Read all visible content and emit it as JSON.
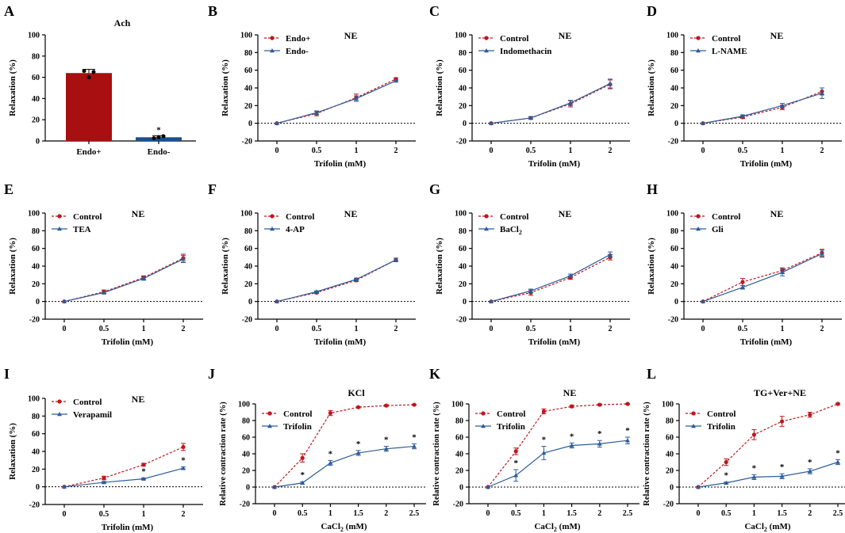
{
  "colors": {
    "red": "#C0161C",
    "blue": "#2E5C99",
    "bar_red": "#A80F10",
    "bar_blue": "#1D4F8F",
    "axis": "#000000"
  },
  "chart_data": [
    {
      "panel": "A",
      "type": "bar",
      "title": "Ach",
      "xlabel": "",
      "ylabel": "Relaxation (%)",
      "ylim": [
        0,
        100
      ],
      "yticks": [
        "0",
        "20",
        "40",
        "60",
        "80",
        "100"
      ],
      "categories": [
        "Endo+",
        "Endo-"
      ],
      "values": [
        64,
        3.5
      ],
      "errors": [
        3.5,
        1.5
      ],
      "points": [
        [
          66,
          60,
          65
        ],
        [
          2.5,
          3.5,
          4.5
        ]
      ],
      "stars": [
        "",
        "*"
      ]
    },
    {
      "panel": "B",
      "type": "line",
      "title": "NE",
      "xlabel": "Trifolin (mM)",
      "ylabel": "Relaxation (%)",
      "ylim": [
        -20,
        100
      ],
      "yticks": [
        "-20",
        "0",
        "20",
        "40",
        "60",
        "80",
        "100"
      ],
      "x": [
        0,
        0.5,
        1,
        2
      ],
      "xticks": [
        "0",
        "0.5",
        "1",
        "2"
      ],
      "series": [
        {
          "name": "Endo+",
          "color": "red",
          "values": [
            0,
            11,
            29,
            50
          ],
          "errors": [
            0,
            2.5,
            4,
            1.5
          ],
          "stars": []
        },
        {
          "name": "Endo-",
          "color": "blue",
          "values": [
            0,
            12,
            28,
            48
          ],
          "errors": [
            0,
            2,
            3,
            1
          ],
          "stars": []
        }
      ]
    },
    {
      "panel": "C",
      "type": "line",
      "title": "NE",
      "xlabel": "Trifolin (mM)",
      "ylabel": "Relaxation (%)",
      "ylim": [
        -20,
        100
      ],
      "yticks": [
        "-20",
        "0",
        "20",
        "40",
        "60",
        "80",
        "100"
      ],
      "x": [
        0,
        0.5,
        1,
        2
      ],
      "xticks": [
        "0",
        "0.5",
        "1",
        "2"
      ],
      "series": [
        {
          "name": "Control",
          "color": "red",
          "values": [
            0,
            6,
            22,
            44
          ],
          "errors": [
            0,
            1.5,
            3.5,
            5
          ],
          "stars": []
        },
        {
          "name": "Indomethacin",
          "color": "blue",
          "values": [
            0,
            6,
            23,
            45
          ],
          "errors": [
            0,
            1.5,
            3,
            5
          ],
          "stars": []
        }
      ]
    },
    {
      "panel": "D",
      "type": "line",
      "title": "NE",
      "xlabel": "Trifolin (mM)",
      "ylabel": "Relaxation (%)",
      "ylim": [
        -20,
        100
      ],
      "yticks": [
        "-20",
        "0",
        "20",
        "40",
        "60",
        "80",
        "100"
      ],
      "x": [
        0,
        0.5,
        1,
        2
      ],
      "xticks": [
        "0",
        "0.5",
        "1",
        "2"
      ],
      "series": [
        {
          "name": "Control",
          "color": "red",
          "values": [
            0,
            7,
            18,
            36
          ],
          "errors": [
            0,
            1.5,
            2.5,
            4
          ],
          "stars": []
        },
        {
          "name": "L-NAME",
          "color": "blue",
          "values": [
            0,
            8,
            20,
            34
          ],
          "errors": [
            0,
            1.5,
            2.5,
            6
          ],
          "stars": []
        }
      ]
    },
    {
      "panel": "E",
      "type": "line",
      "title": "NE",
      "xlabel": "Trifolin (mM)",
      "ylabel": "Relaxation (%)",
      "ylim": [
        -20,
        100
      ],
      "yticks": [
        "-20",
        "0",
        "20",
        "40",
        "60",
        "80",
        "100"
      ],
      "x": [
        0,
        0.5,
        1,
        2
      ],
      "xticks": [
        "0",
        "0.5",
        "1",
        "2"
      ],
      "series": [
        {
          "name": "Control",
          "color": "red",
          "values": [
            0,
            11,
            27,
            49
          ],
          "errors": [
            0,
            2,
            2,
            4.5
          ],
          "stars": []
        },
        {
          "name": "TEA",
          "color": "blue",
          "values": [
            0,
            10,
            26,
            48
          ],
          "errors": [
            0,
            1.5,
            2,
            4
          ],
          "stars": []
        }
      ]
    },
    {
      "panel": "F",
      "type": "line",
      "title": "NE",
      "xlabel": "Trifolin (mM)",
      "ylabel": "Relaxation (%)",
      "ylim": [
        -20,
        100
      ],
      "yticks": [
        "-20",
        "0",
        "20",
        "40",
        "60",
        "80",
        "100"
      ],
      "x": [
        0,
        0.5,
        1,
        2
      ],
      "xticks": [
        "0",
        "0.5",
        "1",
        "2"
      ],
      "series": [
        {
          "name": "Control",
          "color": "red",
          "values": [
            0,
            10,
            24,
            47
          ],
          "errors": [
            0,
            1,
            1.5,
            2
          ],
          "stars": []
        },
        {
          "name": "4-AP",
          "color": "blue",
          "values": [
            0,
            11,
            25,
            47
          ],
          "errors": [
            0,
            1,
            1.5,
            2
          ],
          "stars": []
        }
      ]
    },
    {
      "panel": "G",
      "type": "line",
      "title": "NE",
      "xlabel": "Trifolin (mM)",
      "ylabel": "Relaxation (%)",
      "ylim": [
        -20,
        100
      ],
      "yticks": [
        "-20",
        "0",
        "20",
        "40",
        "60",
        "80",
        "100"
      ],
      "x": [
        0,
        0.5,
        1,
        2
      ],
      "xticks": [
        "0",
        "0.5",
        "1",
        "2"
      ],
      "series": [
        {
          "name": "Control",
          "color": "red",
          "values": [
            0,
            10,
            27,
            50
          ],
          "errors": [
            0,
            3,
            2,
            3
          ],
          "stars": []
        },
        {
          "name": "BaCl",
          "sub": "2",
          "color": "blue",
          "values": [
            0,
            12,
            29,
            53
          ],
          "errors": [
            0,
            2,
            2,
            3
          ],
          "stars": []
        }
      ]
    },
    {
      "panel": "H",
      "type": "line",
      "title": "NE",
      "xlabel": "Trifolin (mM)",
      "ylabel": "Relaxation (%)",
      "ylim": [
        -20,
        100
      ],
      "yticks": [
        "-20",
        "0",
        "20",
        "40",
        "60",
        "80",
        "100"
      ],
      "x": [
        0,
        0.5,
        1,
        2
      ],
      "xticks": [
        "0",
        "0.5",
        "1",
        "2"
      ],
      "series": [
        {
          "name": "Control",
          "color": "red",
          "values": [
            0,
            22,
            35,
            55
          ],
          "errors": [
            0,
            4,
            3,
            4
          ],
          "stars": []
        },
        {
          "name": "Gli",
          "color": "blue",
          "values": [
            0,
            16,
            33,
            54
          ],
          "errors": [
            0,
            2,
            4,
            4
          ],
          "stars": []
        }
      ]
    },
    {
      "panel": "I",
      "type": "line",
      "title": "NE",
      "xlabel": "Trifolin (mM)",
      "ylabel": "Relaxation (%)",
      "ylim": [
        -20,
        100
      ],
      "yticks": [
        "-20",
        "0",
        "20",
        "40",
        "60",
        "80",
        "100"
      ],
      "x": [
        0,
        0.5,
        1,
        2
      ],
      "xticks": [
        "0",
        "0.5",
        "1",
        "2"
      ],
      "series": [
        {
          "name": "Control",
          "color": "red",
          "values": [
            0,
            10,
            25,
            45
          ],
          "errors": [
            0,
            2,
            1.5,
            4
          ],
          "stars": []
        },
        {
          "name": "Verapamil",
          "color": "blue",
          "values": [
            0,
            5,
            9,
            21
          ],
          "errors": [
            0,
            1,
            1,
            1.5
          ],
          "stars": [
            "",
            "",
            "*",
            "*"
          ]
        }
      ]
    },
    {
      "panel": "J",
      "type": "line",
      "title": "KCl",
      "xlabel": "CaCl",
      "xlabel_sub": "2",
      "xlabel_unit": " (mM)",
      "ylabel": "Relative contraction rate (%)",
      "ylim": [
        -20,
        100
      ],
      "yticks": [
        "-20",
        "0",
        "20",
        "40",
        "60",
        "80",
        "100"
      ],
      "x": [
        0,
        0.5,
        1,
        1.5,
        2,
        2.5
      ],
      "xticks": [
        "0",
        "0.5",
        "1",
        "1.5",
        "2",
        "2.5"
      ],
      "series": [
        {
          "name": "Control",
          "color": "red",
          "values": [
            0,
            35,
            89,
            96,
            98,
            99
          ],
          "errors": [
            0,
            5,
            3,
            1,
            1,
            0.5
          ],
          "stars": []
        },
        {
          "name": "Trifolin",
          "color": "blue",
          "values": [
            0,
            5,
            29,
            41,
            46,
            49
          ],
          "errors": [
            0,
            1.5,
            3,
            3,
            3,
            3
          ],
          "stars": [
            "",
            "*",
            "*",
            "*",
            "*",
            "*"
          ]
        }
      ]
    },
    {
      "panel": "K",
      "type": "line",
      "title": "NE",
      "xlabel": "CaCl",
      "xlabel_sub": "2",
      "xlabel_unit": " (mM)",
      "ylabel": "Relative contraction rate (%)",
      "ylim": [
        -20,
        100
      ],
      "yticks": [
        "-20",
        "0",
        "20",
        "40",
        "60",
        "80",
        "100"
      ],
      "x": [
        0,
        0.5,
        1,
        1.5,
        2,
        2.5
      ],
      "xticks": [
        "0",
        "0.5",
        "1",
        "1.5",
        "2",
        "2.5"
      ],
      "series": [
        {
          "name": "Control",
          "color": "red",
          "values": [
            0,
            43,
            91,
            97,
            99,
            100
          ],
          "errors": [
            0,
            4,
            3,
            1.5,
            1,
            0.5
          ],
          "stars": []
        },
        {
          "name": "Trifolin",
          "color": "blue",
          "values": [
            0,
            14,
            41,
            50,
            52,
            56
          ],
          "errors": [
            0,
            7,
            8,
            3,
            4,
            4
          ],
          "stars": [
            "",
            "*",
            "*",
            "*",
            "*",
            "*"
          ]
        }
      ]
    },
    {
      "panel": "L",
      "type": "line",
      "title": "TG+Ver+NE",
      "xlabel": "CaCl",
      "xlabel_sub": "2",
      "xlabel_unit": " (mM)",
      "ylabel": "Relative contraction rate (%)",
      "ylim": [
        -20,
        100
      ],
      "yticks": [
        "-20",
        "0",
        "20",
        "40",
        "60",
        "80",
        "100"
      ],
      "x": [
        0,
        0.5,
        1,
        1.5,
        2,
        2.5
      ],
      "xticks": [
        "0",
        "0.5",
        "1",
        "1.5",
        "2",
        "2.5"
      ],
      "series": [
        {
          "name": "Control",
          "color": "red",
          "values": [
            0,
            30,
            63,
            79,
            87,
            100
          ],
          "errors": [
            0,
            4,
            6,
            6,
            3,
            1
          ],
          "stars": []
        },
        {
          "name": "Trifolin",
          "color": "blue",
          "values": [
            0,
            5,
            12,
            13,
            19,
            30
          ],
          "errors": [
            0,
            1,
            3,
            3,
            3,
            3
          ],
          "stars": [
            "",
            "*",
            "*",
            "*",
            "*",
            "*"
          ]
        }
      ]
    }
  ]
}
